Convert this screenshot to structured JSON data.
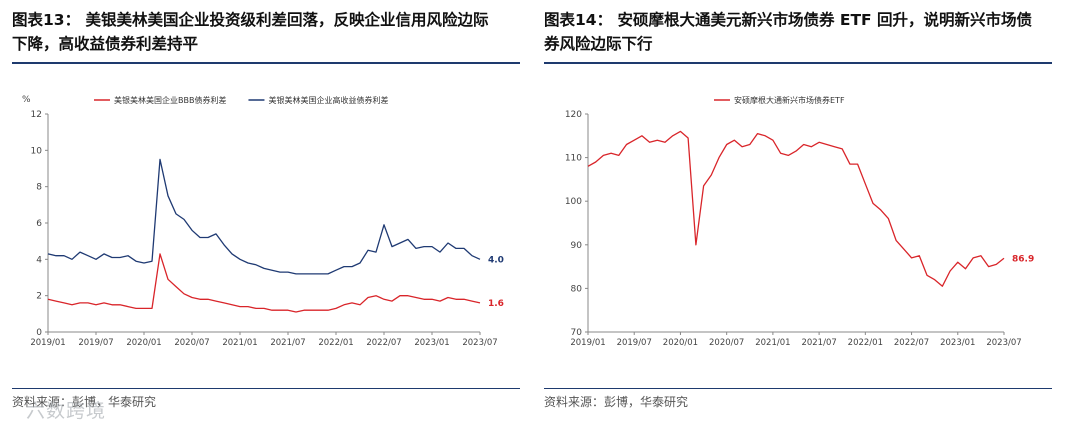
{
  "charts": [
    {
      "title_line1": "图表13：  美银美林美国企业投资级利差回落，反映企业信用风险边际",
      "title_line2": "下降，高收益债券利差持平",
      "source": "资料来源：彭博，华泰研究",
      "watermark": "六数跨境"
    },
    {
      "title_line1": "图表14：  安硕摩根大通美元新兴市场债券 ETF 回升，说明新兴市场债",
      "title_line2": "券风险边际下行",
      "source": "资料来源：彭博，华泰研究"
    }
  ],
  "chart_data": [
    {
      "type": "line",
      "unit_label": "%",
      "x": [
        "2019/01",
        "2019/02",
        "2019/03",
        "2019/04",
        "2019/05",
        "2019/06",
        "2019/07",
        "2019/08",
        "2019/09",
        "2019/10",
        "2019/11",
        "2019/12",
        "2020/01",
        "2020/02",
        "2020/03",
        "2020/04",
        "2020/05",
        "2020/06",
        "2020/07",
        "2020/08",
        "2020/09",
        "2020/10",
        "2020/11",
        "2020/12",
        "2021/01",
        "2021/02",
        "2021/03",
        "2021/04",
        "2021/05",
        "2021/06",
        "2021/07",
        "2021/08",
        "2021/09",
        "2021/10",
        "2021/11",
        "2021/12",
        "2022/01",
        "2022/02",
        "2022/03",
        "2022/04",
        "2022/05",
        "2022/06",
        "2022/07",
        "2022/08",
        "2022/09",
        "2022/10",
        "2022/11",
        "2022/12",
        "2023/01",
        "2023/02",
        "2023/03",
        "2023/04",
        "2023/05",
        "2023/06",
        "2023/07"
      ],
      "x_ticks": [
        "2019/01",
        "2019/07",
        "2020/01",
        "2020/07",
        "2021/01",
        "2021/07",
        "2022/01",
        "2022/07",
        "2023/01",
        "2023/07"
      ],
      "ylim": [
        0,
        12
      ],
      "y_ticks": [
        0,
        2,
        4,
        6,
        8,
        10,
        12
      ],
      "legend_position": "top",
      "series": [
        {
          "name": "美银美林美国企业BBB债券利差",
          "color": "#d9252a",
          "end_label": "1.6",
          "values": [
            1.8,
            1.7,
            1.6,
            1.5,
            1.6,
            1.6,
            1.5,
            1.6,
            1.5,
            1.5,
            1.4,
            1.3,
            1.3,
            1.3,
            4.3,
            2.9,
            2.5,
            2.1,
            1.9,
            1.8,
            1.8,
            1.7,
            1.6,
            1.5,
            1.4,
            1.4,
            1.3,
            1.3,
            1.2,
            1.2,
            1.2,
            1.1,
            1.2,
            1.2,
            1.2,
            1.2,
            1.3,
            1.5,
            1.6,
            1.5,
            1.9,
            2.0,
            1.8,
            1.7,
            2.0,
            2.0,
            1.9,
            1.8,
            1.8,
            1.7,
            1.9,
            1.8,
            1.8,
            1.7,
            1.6
          ]
        },
        {
          "name": "美银美林美国企业高收益债券利差",
          "color": "#1f3a73",
          "end_label": "4.0",
          "values": [
            4.3,
            4.2,
            4.2,
            4.0,
            4.4,
            4.2,
            4.0,
            4.3,
            4.1,
            4.1,
            4.2,
            3.9,
            3.8,
            3.9,
            9.5,
            7.5,
            6.5,
            6.2,
            5.6,
            5.2,
            5.2,
            5.4,
            4.8,
            4.3,
            4.0,
            3.8,
            3.7,
            3.5,
            3.4,
            3.3,
            3.3,
            3.2,
            3.2,
            3.2,
            3.2,
            3.2,
            3.4,
            3.6,
            3.6,
            3.8,
            4.5,
            4.4,
            5.9,
            4.7,
            4.9,
            5.1,
            4.6,
            4.7,
            4.7,
            4.4,
            4.9,
            4.6,
            4.6,
            4.2,
            4.0
          ]
        }
      ]
    },
    {
      "type": "line",
      "x": [
        "2019/01",
        "2019/02",
        "2019/03",
        "2019/04",
        "2019/05",
        "2019/06",
        "2019/07",
        "2019/08",
        "2019/09",
        "2019/10",
        "2019/11",
        "2019/12",
        "2020/01",
        "2020/02",
        "2020/03",
        "2020/04",
        "2020/05",
        "2020/06",
        "2020/07",
        "2020/08",
        "2020/09",
        "2020/10",
        "2020/11",
        "2020/12",
        "2021/01",
        "2021/02",
        "2021/03",
        "2021/04",
        "2021/05",
        "2021/06",
        "2021/07",
        "2021/08",
        "2021/09",
        "2021/10",
        "2021/11",
        "2021/12",
        "2022/01",
        "2022/02",
        "2022/03",
        "2022/04",
        "2022/05",
        "2022/06",
        "2022/07",
        "2022/08",
        "2022/09",
        "2022/10",
        "2022/11",
        "2022/12",
        "2023/01",
        "2023/02",
        "2023/03",
        "2023/04",
        "2023/05",
        "2023/06",
        "2023/07"
      ],
      "x_ticks": [
        "2019/01",
        "2019/07",
        "2020/01",
        "2020/07",
        "2021/01",
        "2021/07",
        "2022/01",
        "2022/07",
        "2023/01",
        "2023/07"
      ],
      "ylim": [
        70,
        120
      ],
      "y_ticks": [
        70,
        80,
        90,
        100,
        110,
        120
      ],
      "legend_position": "top",
      "series": [
        {
          "name": "安硕摩根大通新兴市场债券ETF",
          "color": "#d9252a",
          "end_label": "86.9",
          "values": [
            108.0,
            109.0,
            110.5,
            111.0,
            110.5,
            113.0,
            114.0,
            115.0,
            113.5,
            114.0,
            113.5,
            115.0,
            116.0,
            114.5,
            90.0,
            103.5,
            106.0,
            110.0,
            113.0,
            114.0,
            112.5,
            113.0,
            115.5,
            115.0,
            114.0,
            111.0,
            110.5,
            111.5,
            113.0,
            112.5,
            113.5,
            113.0,
            112.5,
            112.0,
            108.5,
            108.5,
            104.0,
            99.5,
            98.0,
            96.0,
            91.0,
            89.0,
            87.0,
            87.5,
            83.0,
            82.0,
            80.5,
            84.0,
            86.0,
            84.5,
            87.0,
            87.5,
            85.0,
            85.5,
            86.9
          ]
        }
      ]
    }
  ]
}
